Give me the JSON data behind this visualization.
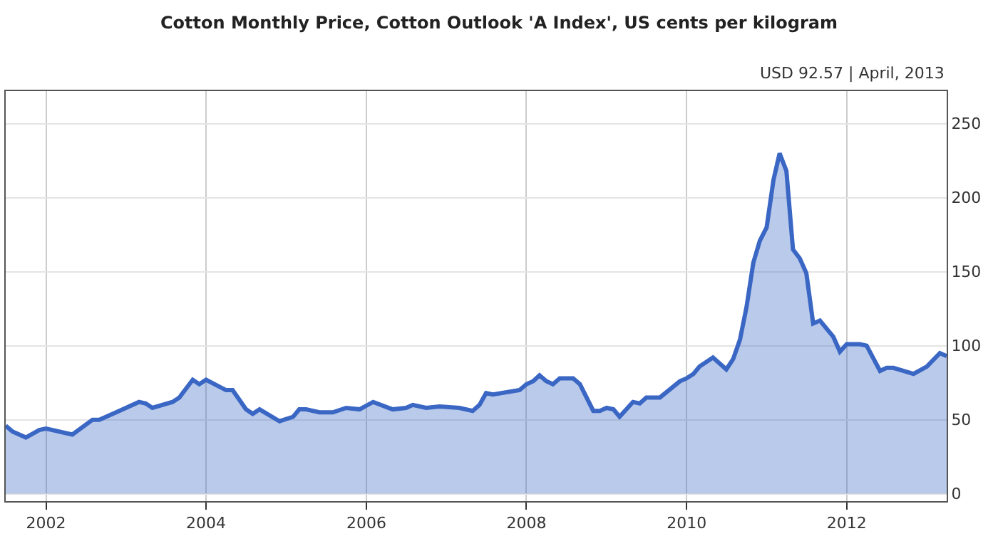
{
  "chart_data": {
    "type": "area",
    "title": "Cotton Monthly Price, Cotton Outlook 'A Index', US cents per kilogram",
    "annotations": [
      "USD 92.57 | April, 2013"
    ],
    "x": [
      "2001-07",
      "2001-08",
      "2001-10",
      "2001-12",
      "2002-01",
      "2002-05",
      "2002-08",
      "2002-09",
      "2002-12",
      "2003-03",
      "2003-04",
      "2003-05",
      "2003-08",
      "2003-09",
      "2003-11",
      "2003-12",
      "2004-01",
      "2004-04",
      "2004-05",
      "2004-07",
      "2004-08",
      "2004-09",
      "2004-12",
      "2005-02",
      "2005-03",
      "2005-04",
      "2005-06",
      "2005-08",
      "2005-10",
      "2005-12",
      "2006-02",
      "2006-05",
      "2006-07",
      "2006-08",
      "2006-10",
      "2006-12",
      "2007-03",
      "2007-05",
      "2007-06",
      "2007-07",
      "2007-08",
      "2007-12",
      "2008-01",
      "2008-02",
      "2008-03",
      "2008-04",
      "2008-05",
      "2008-06",
      "2008-08",
      "2008-09",
      "2008-11",
      "2008-12",
      "2009-01",
      "2009-02",
      "2009-03",
      "2009-05",
      "2009-06",
      "2009-07",
      "2009-09",
      "2009-12",
      "2010-01",
      "2010-02",
      "2010-03",
      "2010-05",
      "2010-07",
      "2010-08",
      "2010-09",
      "2010-10",
      "2010-11",
      "2010-12",
      "2011-01",
      "2011-02",
      "2011-03",
      "2011-04",
      "2011-05",
      "2011-06",
      "2011-07",
      "2011-08",
      "2011-09",
      "2011-11",
      "2011-12",
      "2012-01",
      "2012-02",
      "2012-03",
      "2012-04",
      "2012-06",
      "2012-07",
      "2012-08",
      "2012-11",
      "2013-01",
      "2013-03",
      "2013-04"
    ],
    "series": [
      {
        "color": "#3a66c4",
        "values": [
          46,
          42,
          38,
          43,
          44,
          40,
          50,
          50,
          56,
          62,
          61,
          58,
          62,
          65,
          77,
          74,
          77,
          70,
          70,
          57,
          54,
          57,
          49,
          52,
          57,
          57,
          55,
          55,
          58,
          57,
          62,
          57,
          58,
          60,
          58,
          59,
          58,
          56,
          60,
          68,
          67,
          70,
          74,
          76,
          80,
          76,
          74,
          78,
          78,
          74,
          56,
          56,
          58,
          57,
          52,
          62,
          61,
          65,
          65,
          76,
          78,
          81,
          86,
          92,
          84,
          91,
          104,
          126,
          156,
          171,
          180,
          212,
          230,
          218,
          165,
          159,
          149,
          115,
          117,
          106,
          96,
          101,
          101,
          101,
          100,
          83,
          85,
          85,
          81,
          86,
          95,
          93
        ]
      }
    ],
    "xlim": [
      "2001-07",
      "2013-04"
    ],
    "xticks": [
      {
        "value": "2002-01",
        "label": "2002"
      },
      {
        "value": "2004-01",
        "label": "2004"
      },
      {
        "value": "2006-01",
        "label": "2006"
      },
      {
        "value": "2008-01",
        "label": "2008"
      },
      {
        "value": "2010-01",
        "label": "2010"
      },
      {
        "value": "2012-01",
        "label": "2012"
      }
    ],
    "ylim": [
      -5,
      272
    ],
    "yticks": [
      0,
      50,
      100,
      150,
      200,
      250
    ],
    "grid": true
  }
}
